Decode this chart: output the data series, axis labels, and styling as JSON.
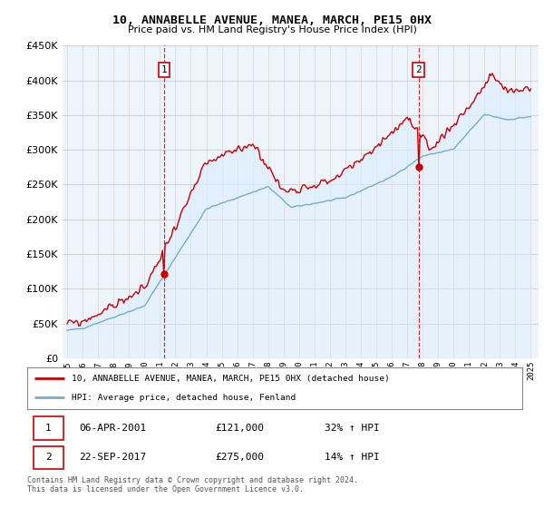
{
  "title": "10, ANNABELLE AVENUE, MANEA, MARCH, PE15 0HX",
  "subtitle": "Price paid vs. HM Land Registry's House Price Index (HPI)",
  "legend_line1": "10, ANNABELLE AVENUE, MANEA, MARCH, PE15 0HX (detached house)",
  "legend_line2": "HPI: Average price, detached house, Fenland",
  "footnote": "Contains HM Land Registry data © Crown copyright and database right 2024.\nThis data is licensed under the Open Government Licence v3.0.",
  "point1_date": "06-APR-2001",
  "point1_price": 121000,
  "point1_hpi": "32% ↑ HPI",
  "point1_year": 2001.27,
  "point1_val": 121000,
  "point2_date": "22-SEP-2017",
  "point2_price": 275000,
  "point2_hpi": "14% ↑ HPI",
  "point2_year": 2017.73,
  "point2_val": 275000,
  "red_color": "#cc0000",
  "blue_color": "#7aadcc",
  "fill_color": "#ddeeff",
  "ylim": [
    0,
    450000
  ],
  "xlim_start": 1994.7,
  "xlim_end": 2025.5,
  "background_color": "#ffffff",
  "plot_bg_color": "#eef4fb",
  "grid_color": "#cccccc"
}
